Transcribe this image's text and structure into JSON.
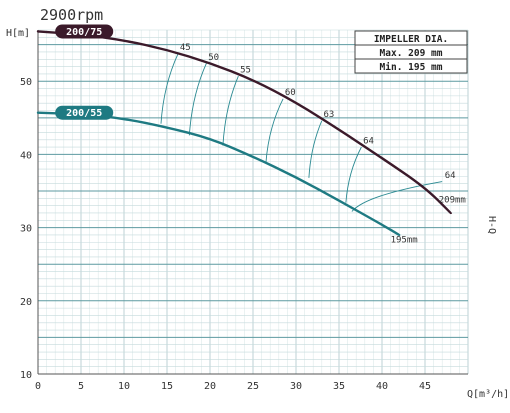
{
  "chart_data": {
    "type": "line",
    "title": "2900rpm",
    "ylabel": "H[m]",
    "xlabel": "Q[m³/h]",
    "side_label": "H-Q",
    "xlim": [
      0,
      50
    ],
    "ylim": [
      10,
      57
    ],
    "xticks": [
      0,
      5,
      10,
      15,
      20,
      25,
      30,
      35,
      40,
      45
    ],
    "yticks": [
      10,
      20,
      30,
      40,
      50
    ],
    "grid": true,
    "series": [
      {
        "name": "200/75",
        "color": "#3b1a2a",
        "x": [
          0,
          5,
          10,
          15,
          20,
          25,
          30,
          35,
          40,
          45,
          48
        ],
        "y": [
          56.8,
          56.4,
          55.6,
          54.3,
          52.5,
          50.2,
          47.1,
          43.4,
          39.5,
          35.5,
          32.0
        ]
      },
      {
        "name": "200/55",
        "color": "#1e7a82",
        "x": [
          0,
          5,
          10,
          15,
          20,
          25,
          30,
          35,
          40,
          42
        ],
        "y": [
          45.7,
          45.5,
          44.9,
          43.7,
          42.2,
          39.7,
          36.9,
          33.7,
          30.4,
          29.0
        ]
      }
    ],
    "efficiency_labels": [
      {
        "label": "45",
        "x": 16.5,
        "y": 54.3
      },
      {
        "label": "50",
        "x": 19.8,
        "y": 52.9
      },
      {
        "label": "55",
        "x": 23.5,
        "y": 51.2
      },
      {
        "label": "60",
        "x": 28.7,
        "y": 48.1
      },
      {
        "label": "63",
        "x": 33.2,
        "y": 45.1
      },
      {
        "label": "64",
        "x": 37.8,
        "y": 41.5
      },
      {
        "label": "64",
        "x": 47.3,
        "y": 36.8
      }
    ],
    "iso_efficiency": [
      {
        "x1": 14.3,
        "y1": 44.2,
        "x2": 16.3,
        "y2": 53.8
      },
      {
        "x1": 17.6,
        "y1": 42.6,
        "x2": 19.6,
        "y2": 52.5
      },
      {
        "x1": 21.5,
        "y1": 41.2,
        "x2": 23.3,
        "y2": 50.7
      },
      {
        "x1": 26.5,
        "y1": 38.8,
        "x2": 28.5,
        "y2": 47.6
      },
      {
        "x1": 31.5,
        "y1": 36.8,
        "x2": 33.0,
        "y2": 44.6
      },
      {
        "x1": 35.8,
        "y1": 33.4,
        "x2": 37.6,
        "y2": 41.0
      },
      {
        "x1": 36.5,
        "y1": 32.2,
        "x2": 47.0,
        "y2": 36.3
      }
    ],
    "curve_end_labels": [
      {
        "label": "209mm",
        "x": 46.6,
        "y": 33.4
      },
      {
        "label": "195mm",
        "x": 41.0,
        "y": 28.0
      }
    ],
    "impeller_box": {
      "title": "IMPELLER DIA.",
      "max": "Max. 209 mm",
      "min": "Min. 195 mm"
    }
  }
}
